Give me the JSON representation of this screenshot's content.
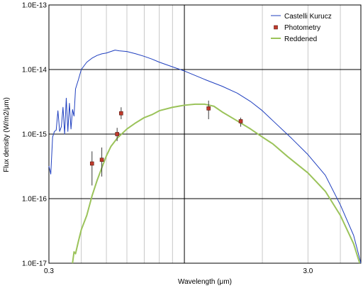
{
  "chart_data": {
    "type": "line",
    "xlabel": "Wavelength (μm)",
    "ylabel": "Flux density (W/m2/μm)",
    "x_scale": "log",
    "y_scale": "log",
    "xlim": [
      0.3,
      4.8
    ],
    "ylim": [
      1e-17,
      1e-13
    ],
    "x_tick_values": [
      0.3,
      3.0
    ],
    "x_tick_labels": [
      "0.3",
      "3.0"
    ],
    "y_tick_values": [
      1e-13,
      1e-14,
      1e-15,
      1e-16,
      1e-17
    ],
    "y_tick_labels": [
      "1.0E-13",
      "1.0E-14",
      "1.0E-15",
      "1.0E-16",
      "1.0E-17"
    ],
    "grid": true,
    "legend_position": "top-right",
    "legend": [
      {
        "label": "Castelli Kurucz",
        "color": "#1f3fbf",
        "kind": "line"
      },
      {
        "label": "Photometry",
        "color": "#c0392b",
        "kind": "marker"
      },
      {
        "label": "Reddened",
        "color": "#9bc35a",
        "kind": "line"
      }
    ],
    "series": [
      {
        "name": "Castelli Kurucz",
        "color": "#1f3fbf",
        "points": [
          [
            0.3,
            3.2e-16
          ],
          [
            0.305,
            2.4e-16
          ],
          [
            0.31,
            9e-16
          ],
          [
            0.315,
            1.1e-15
          ],
          [
            0.32,
            1.15e-15
          ],
          [
            0.325,
            2.3e-15
          ],
          [
            0.33,
            1.1e-15
          ],
          [
            0.335,
            1.3e-15
          ],
          [
            0.34,
            2.6e-15
          ],
          [
            0.345,
            1e-15
          ],
          [
            0.35,
            3.6e-15
          ],
          [
            0.355,
            1.1e-15
          ],
          [
            0.36,
            3e-15
          ],
          [
            0.365,
            1.2e-15
          ],
          [
            0.37,
            2.4e-15
          ],
          [
            0.375,
            1.9e-15
          ],
          [
            0.38,
            5e-15
          ],
          [
            0.39,
            7e-15
          ],
          [
            0.4,
            1e-14
          ],
          [
            0.42,
            1.3e-14
          ],
          [
            0.44,
            1.5e-14
          ],
          [
            0.46,
            1.65e-14
          ],
          [
            0.48,
            1.75e-14
          ],
          [
            0.5,
            1.8e-14
          ],
          [
            0.52,
            1.9e-14
          ],
          [
            0.54,
            2e-14
          ],
          [
            0.56,
            1.95e-14
          ],
          [
            0.6,
            1.9e-14
          ],
          [
            0.65,
            1.75e-14
          ],
          [
            0.7,
            1.6e-14
          ],
          [
            0.75,
            1.45e-14
          ],
          [
            0.8,
            1.3e-14
          ],
          [
            0.9,
            1.1e-14
          ],
          [
            1.0,
            9.5e-15
          ],
          [
            1.2,
            7e-15
          ],
          [
            1.4,
            5.5e-15
          ],
          [
            1.6,
            4.3e-15
          ],
          [
            1.8,
            3.2e-15
          ],
          [
            2.0,
            2.3e-15
          ],
          [
            2.2,
            1.6e-15
          ],
          [
            2.6,
            8.5e-16
          ],
          [
            3.0,
            4.8e-16
          ],
          [
            3.5,
            2.3e-16
          ],
          [
            4.0,
            8e-17
          ],
          [
            4.5,
            2.7e-17
          ],
          [
            4.8,
            1e-17
          ]
        ]
      },
      {
        "name": "Reddened",
        "color": "#9bc35a",
        "points": [
          [
            0.37,
            1e-17
          ],
          [
            0.375,
            1.5e-17
          ],
          [
            0.38,
            1.4e-17
          ],
          [
            0.39,
            2.2e-17
          ],
          [
            0.4,
            3.3e-17
          ],
          [
            0.42,
            5.5e-17
          ],
          [
            0.44,
            1.1e-16
          ],
          [
            0.46,
            1.9e-16
          ],
          [
            0.48,
            3e-16
          ],
          [
            0.5,
            4.6e-16
          ],
          [
            0.52,
            6.4e-16
          ],
          [
            0.55,
            8.6e-16
          ],
          [
            0.6,
            1.2e-15
          ],
          [
            0.65,
            1.5e-15
          ],
          [
            0.7,
            1.8e-15
          ],
          [
            0.75,
            2e-15
          ],
          [
            0.8,
            2.3e-15
          ],
          [
            0.9,
            2.6e-15
          ],
          [
            1.0,
            2.8e-15
          ],
          [
            1.1,
            2.9e-15
          ],
          [
            1.2,
            2.9e-15
          ],
          [
            1.3,
            2.7e-15
          ],
          [
            1.4,
            2.2e-15
          ],
          [
            1.6,
            1.6e-15
          ],
          [
            1.8,
            1.2e-15
          ],
          [
            2.0,
            9e-16
          ],
          [
            2.2,
            7e-16
          ],
          [
            2.5,
            4.5e-16
          ],
          [
            3.0,
            2.5e-16
          ],
          [
            3.5,
            1.3e-16
          ],
          [
            4.0,
            5.5e-17
          ],
          [
            4.5,
            2e-17
          ],
          [
            4.75,
            1e-17
          ]
        ]
      }
    ],
    "photometry": {
      "name": "Photometry",
      "points": [
        {
          "x": 0.44,
          "y": 3.5e-16,
          "ylow": 1.6e-16,
          "yhigh": 5.4e-16
        },
        {
          "x": 0.48,
          "y": 4e-16,
          "ylow": 2.2e-16,
          "yhigh": 6.2e-16
        },
        {
          "x": 0.55,
          "y": 1e-15,
          "ylow": 7.8e-16,
          "yhigh": 1.25e-15
        },
        {
          "x": 0.57,
          "y": 2.1e-15,
          "ylow": 1.7e-15,
          "yhigh": 2.6e-15
        },
        {
          "x": 1.24,
          "y": 2.5e-15,
          "ylow": 1.7e-15,
          "yhigh": 3.3e-15
        },
        {
          "x": 1.65,
          "y": 1.58e-15,
          "ylow": 1.3e-15,
          "yhigh": 1.8e-15
        }
      ]
    }
  }
}
